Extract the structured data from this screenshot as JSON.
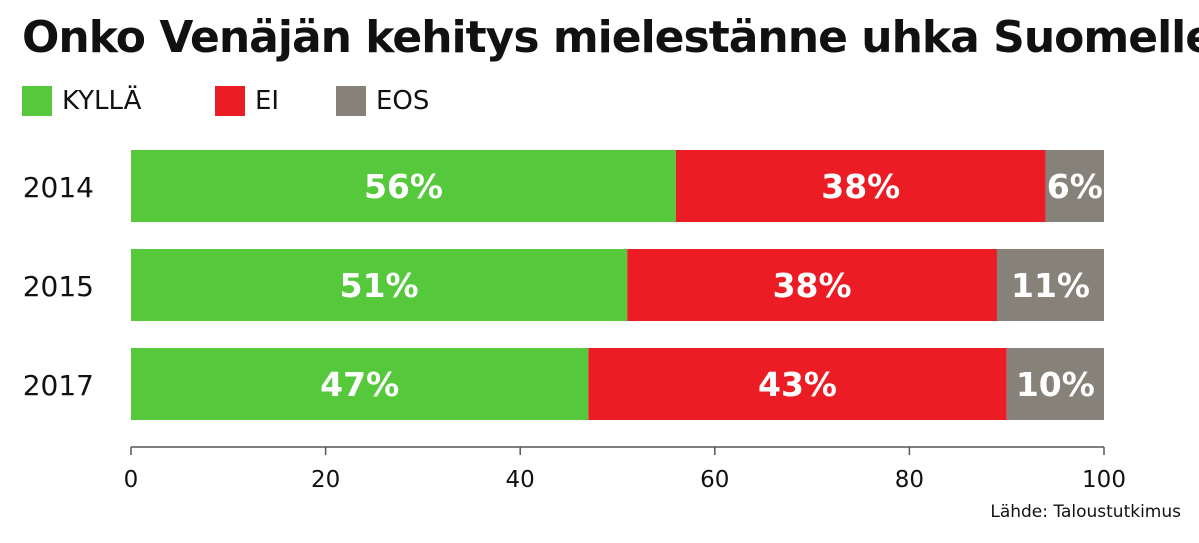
{
  "chart_data": {
    "type": "bar",
    "orientation": "horizontal",
    "stacked": true,
    "title": "Onko Venäjän kehitys mielestänne uhka Suomelle?",
    "categories": [
      "2014",
      "2015",
      "2017"
    ],
    "series": [
      {
        "name": "KYLLÄ",
        "color": "#55c93b",
        "values": [
          56,
          51,
          47
        ],
        "labels": [
          "56%",
          "51%",
          "47%"
        ]
      },
      {
        "name": "EI",
        "color": "#ec1c24",
        "values": [
          38,
          38,
          43
        ],
        "labels": [
          "38%",
          "38%",
          "43%"
        ]
      },
      {
        "name": "EOS",
        "color": "#86827a",
        "values": [
          6,
          11,
          10
        ],
        "labels": [
          "6%",
          "11%",
          "10%"
        ]
      }
    ],
    "xlim": [
      0,
      100
    ],
    "xticks": [
      0,
      20,
      40,
      60,
      80,
      100
    ],
    "xtick_labels": [
      "0",
      "20",
      "40",
      "60",
      "80",
      "100"
    ],
    "grid": false,
    "legend_position": "top-left"
  },
  "source": "Lähde: Taloustutkimus"
}
